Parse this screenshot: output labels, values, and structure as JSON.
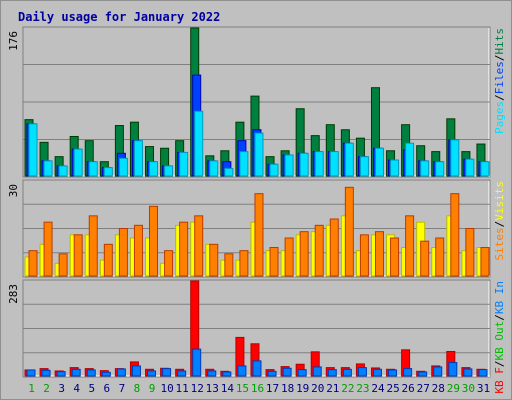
{
  "chart_data": {
    "type": "bar",
    "title": "Daily usage for January 2022",
    "categories": [
      "1",
      "2",
      "3",
      "4",
      "5",
      "6",
      "7",
      "8",
      "9",
      "10",
      "11",
      "12",
      "13",
      "14",
      "15",
      "16",
      "17",
      "18",
      "19",
      "20",
      "21",
      "22",
      "23",
      "24",
      "25",
      "26",
      "27",
      "28",
      "29",
      "30",
      "31"
    ],
    "weekend_days": [
      1,
      2,
      8,
      9,
      15,
      16,
      22,
      23,
      29,
      30
    ],
    "colors": {
      "background": "#C0C0C0",
      "title": "#0000A0",
      "hits": "#008040",
      "files": "#0040FF",
      "pages": "#00E0FF",
      "visits": "#FFFF00",
      "sites": "#FF8000",
      "kb_in": "#0080FF",
      "kb_out": "#00C000",
      "kb_f": "#FF0000",
      "weekend_label": "#00A000",
      "weekday_label": "#000080"
    },
    "panels": [
      {
        "name": "hits-files-pages",
        "ymax_label": "176",
        "ymax": 176,
        "legend": [
          "Pages",
          "/",
          "Files",
          "/",
          "Hits"
        ],
        "legend_colors": [
          "pages",
          "slash",
          "files",
          "slash",
          "hits"
        ],
        "series": [
          {
            "name": "Hits",
            "color": "hits",
            "values": [
              67,
              40,
              23,
              47,
              42,
              17,
              60,
              64,
              35,
              33,
              42,
              176,
              24,
              30,
              64,
              95,
              23,
              30,
              80,
              48,
              61,
              55,
              45,
              105,
              30,
              61,
              36,
              29,
              68,
              29,
              38
            ]
          },
          {
            "name": "Files",
            "color": "files",
            "values": [
              62,
              18,
              12,
              32,
              17,
              10,
              27,
              42,
              17,
              12,
              28,
              120,
              18,
              17,
              42,
              55,
              14,
              25,
              27,
              29,
              29,
              39,
              23,
              33,
              19,
              31,
              18,
              17,
              43,
              20,
              17
            ]
          },
          {
            "name": "Pages",
            "color": "pages",
            "values": [
              62,
              18,
              12,
              32,
              17,
              10,
              21,
              42,
              17,
              12,
              28,
              77,
              18,
              9,
              29,
              51,
              14,
              25,
              27,
              29,
              29,
              39,
              23,
              33,
              19,
              39,
              18,
              17,
              43,
              20,
              17
            ]
          }
        ]
      },
      {
        "name": "visits-sites",
        "ymax_label": "30",
        "ymax": 30,
        "legend": [
          "Sites",
          "/",
          "Visits"
        ],
        "legend_colors": [
          "sites",
          "slash",
          "visits"
        ],
        "series": [
          {
            "name": "Visits",
            "color": "visits",
            "values": [
              6,
              10,
              4,
              13,
              13,
              5,
              13,
              12,
              12,
              4,
              16,
              17,
              10,
              5,
              5,
              17,
              8,
              8,
              13,
              14,
              16,
              19,
              8,
              13,
              13,
              9,
              17,
              9,
              19,
              8,
              9
            ]
          },
          {
            "name": "Sites",
            "color": "sites",
            "values": [
              8,
              17,
              7,
              13,
              19,
              10,
              15,
              16,
              22,
              8,
              17,
              19,
              10,
              7,
              8,
              26,
              9,
              12,
              14,
              16,
              18,
              28,
              13,
              14,
              12,
              19,
              11,
              12,
              26,
              15,
              9
            ]
          }
        ]
      },
      {
        "name": "kbytes",
        "ymax_label": "283",
        "ymax": 283,
        "legend": [
          "KB F",
          "/",
          "KB Out",
          "/",
          "KB In"
        ],
        "legend_colors": [
          "kb_f",
          "slash",
          "kb_out",
          "slash",
          "kb_in"
        ],
        "series": [
          {
            "name": "KB F",
            "color": "kb_f",
            "values": [
              18,
              22,
              15,
              25,
              22,
              16,
              22,
              42,
              20,
              23,
              20,
              283,
              20,
              14,
              115,
              96,
              19,
              28,
              35,
              72,
              25,
              25,
              36,
              24,
              20,
              78,
              14,
              30,
              73,
              25,
              20
            ]
          },
          {
            "name": "KB In",
            "color": "kb_in",
            "values": [
              18,
              17,
              13,
              20,
              18,
              11,
              21,
              30,
              15,
              22,
              15,
              80,
              15,
              12,
              30,
              45,
              14,
              23,
              19,
              27,
              19,
              20,
              25,
              20,
              18,
              22,
              12,
              27,
              40,
              21,
              19
            ]
          }
        ]
      }
    ]
  }
}
